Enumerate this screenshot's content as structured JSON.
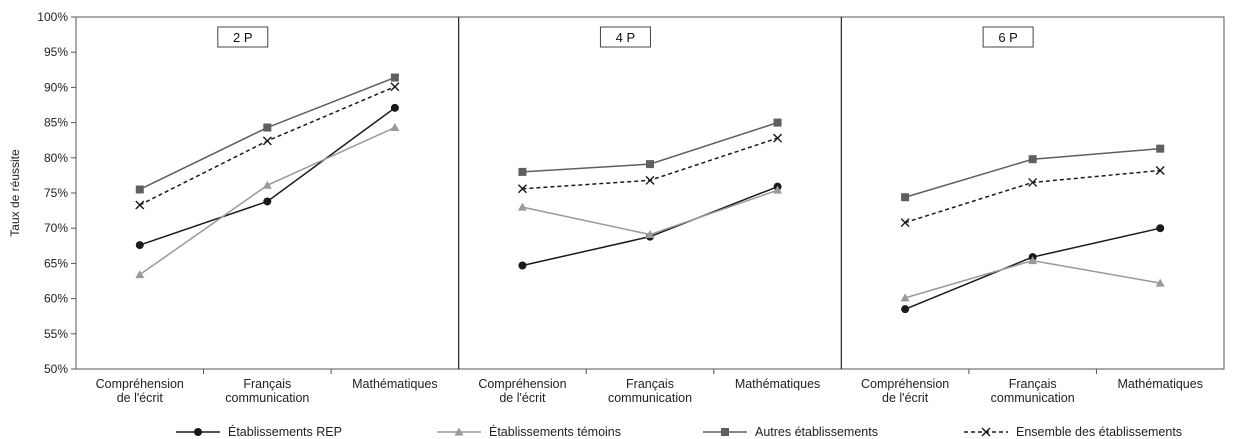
{
  "chart_data": {
    "type": "line",
    "ylabel": "Taux de réussite",
    "ylim": [
      50,
      100
    ],
    "yticks": [
      50,
      55,
      60,
      65,
      70,
      75,
      80,
      85,
      90,
      95,
      100
    ],
    "ytick_suffix": "%",
    "categories": [
      [
        "Compréhension",
        "de l'écrit"
      ],
      [
        "Français",
        "communication"
      ],
      [
        "Mathématiques"
      ]
    ],
    "legend_position": "bottom",
    "series_styles": [
      {
        "color": "#1a1a1a",
        "marker": "circle",
        "dash": "solid"
      },
      {
        "color": "#9a9a9a",
        "marker": "triangle",
        "dash": "solid"
      },
      {
        "color": "#5f5f5f",
        "marker": "square",
        "dash": "solid"
      },
      {
        "color": "#1a1a1a",
        "marker": "cross",
        "dash": "dashed"
      }
    ],
    "legend": [
      "Établissements REP",
      "Établissements témoins",
      "Autres établissements",
      "Ensemble des établissements"
    ],
    "panels": [
      {
        "title": "2 P",
        "series": [
          {
            "values": [
              67.6,
              73.8,
              87.1
            ]
          },
          {
            "values": [
              63.4,
              76.1,
              84.3
            ]
          },
          {
            "values": [
              75.5,
              84.3,
              91.4
            ]
          },
          {
            "values": [
              73.3,
              82.4,
              90.1
            ]
          }
        ]
      },
      {
        "title": "4 P",
        "series": [
          {
            "values": [
              64.7,
              68.8,
              75.9
            ]
          },
          {
            "values": [
              73.0,
              69.1,
              75.4
            ]
          },
          {
            "values": [
              78.0,
              79.1,
              85.0
            ]
          },
          {
            "values": [
              75.6,
              76.8,
              82.8
            ]
          }
        ]
      },
      {
        "title": "6 P",
        "series": [
          {
            "values": [
              58.5,
              65.9,
              70.0
            ]
          },
          {
            "values": [
              60.1,
              65.4,
              62.2
            ]
          },
          {
            "values": [
              74.4,
              79.8,
              81.3
            ]
          },
          {
            "values": [
              70.8,
              76.5,
              78.2
            ]
          }
        ]
      }
    ]
  }
}
